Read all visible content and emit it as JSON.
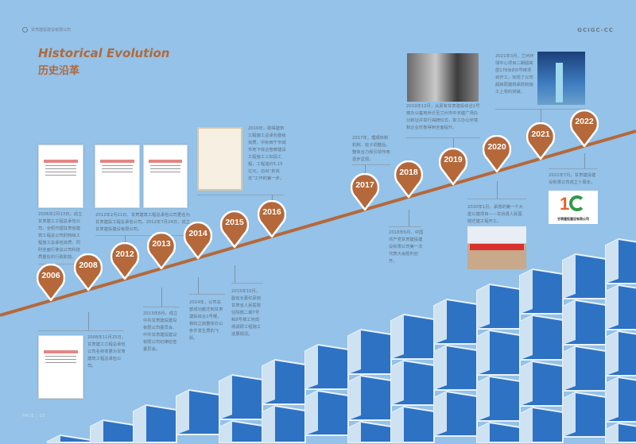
{
  "header": {
    "company": "甘肃建投建设有限公司",
    "brand": "GCIGC-CC"
  },
  "title": {
    "en": "Historical Evolution",
    "cn": "历史沿革"
  },
  "colors": {
    "background": "#94c2e8",
    "accent": "#b06a3c",
    "pin": "#b5683a"
  },
  "events": [
    {
      "year": "2006",
      "text": "2006年2月13日，成立甘肃建工工程总承包公司，全权代理甘肃省建筑工程总公司的特级工程施工总承包资质，同时全面行使总公司科技质量处的行政职能。"
    },
    {
      "year": "2008",
      "text": "2008年11月25日，甘肃建工工程总承包公司名称变更为甘肃建筑工程总承包公司。"
    },
    {
      "year": "2012",
      "text": "2012年2月21日，甘肃建筑工程总承包公司更名为甘肃建投工程总承包公司。2012年7月24日，成立甘肃建投建设有限公司。"
    },
    {
      "year": "2013",
      "text": "2013年8月，成立中共甘肃建投建设有限公司委员会、中共甘肃建投建设有限公司纪律检查委员会。"
    },
    {
      "year": "2014",
      "text": "2014年，公司总部成功搬迁到甘肃建投综合1号楼，相较之前整体办公条件发生质的飞跃。"
    },
    {
      "year": "2015",
      "text": "2015年10月，副省长夏红民到甘肃省人民医院住院部二期7号和8号楼工地现场调研工程施工进展情况。"
    },
    {
      "year": "2016",
      "text": "2016年，取得建筑工程施工总承包叁级资质，中标西宁市城市地下综合管廊建设工程施工三标段工程，工程造价5.15亿元，迈出“走出去”工作的第一步。"
    },
    {
      "year": "2017",
      "text": "2017年，理顺体制机制，班子调整后，整体合力和引领作用逐步显现。"
    },
    {
      "year": "2018",
      "text": "2018年6月，中国共产党甘肃建投建设有限公司第一次代表大会胜利召开。"
    },
    {
      "year": "2019",
      "text": "2019年12月，从原有甘肃建投综合1号楼办公基地乔迁至兰州市中天健广场办公新址并举行揭牌仪式，职工办公环境和企业形象得到全面提升。"
    },
    {
      "year": "2020",
      "text": "2020年1月，承揽的第一个大型公建项目——甘谷县人民医院迁建工程开工。"
    },
    {
      "year": "2021",
      "text": "2021年3月，兰州环球中心项目二期超高层178米的5号楼项目开工，实现了公司超高层建筑承揽和施工上零的突破。"
    },
    {
      "year": "2022",
      "text": "2022年7月，甘肃建投建设有限公司成立十周年。"
    }
  ],
  "logo_caption": "甘肃建投建设有限公司",
  "footer": {
    "page": "PAGE | 03"
  }
}
